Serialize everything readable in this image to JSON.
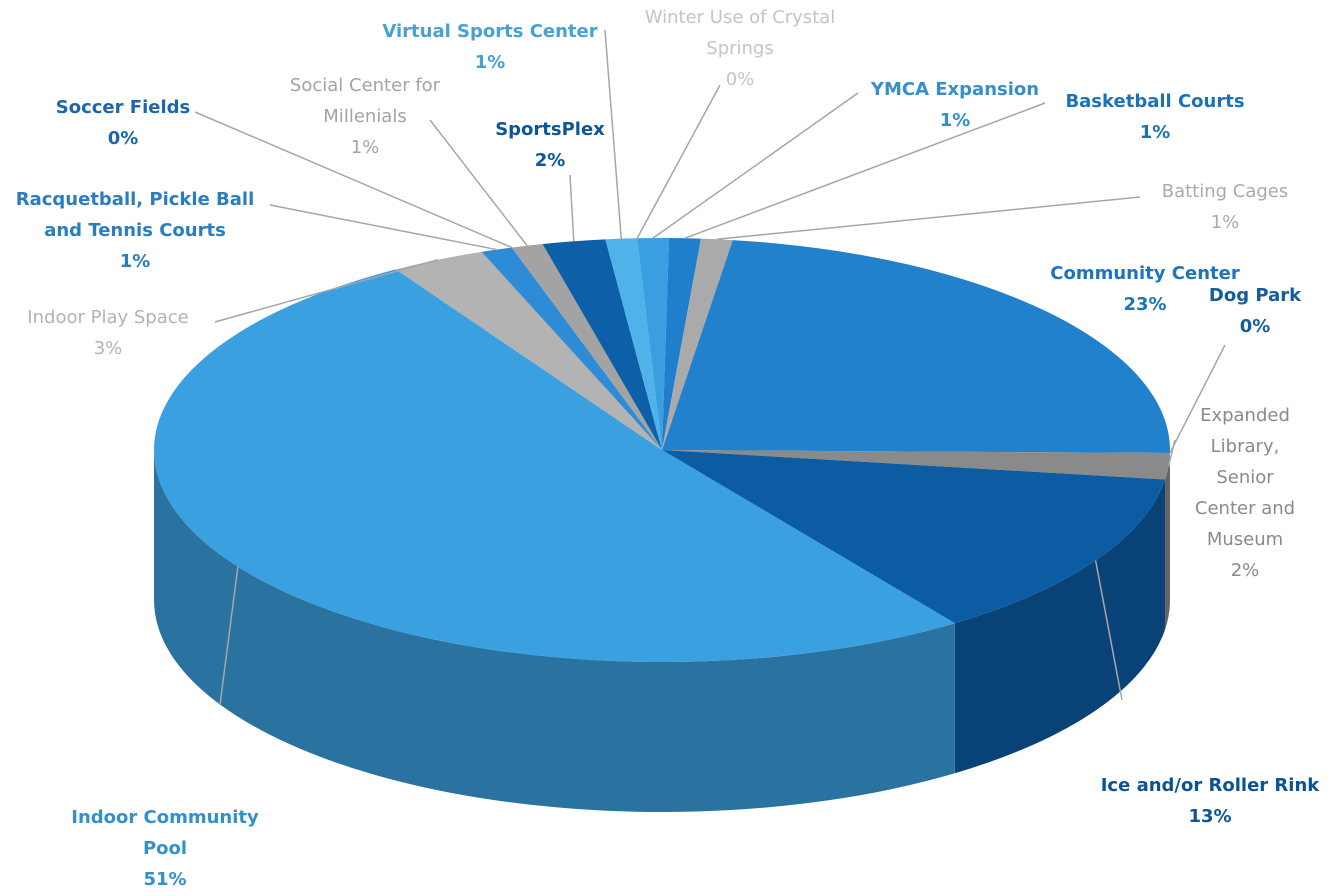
{
  "chart_data": {
    "type": "pie3d",
    "categories": [
      "Community Center",
      "Dog Park",
      "Expanded Library, Senior Center and Museum",
      "Ice and/or Roller Rink",
      "Indoor Community Pool",
      "Indoor Play Space",
      "Racquetball, Pickle Ball and Tennis Courts",
      "Soccer Fields",
      "Social Center for Millenials",
      "SportsPlex",
      "Virtual Sports Center",
      "Winter Use of Crystal Springs",
      "YMCA Expansion",
      "Basketball Courts",
      "Batting Cages"
    ],
    "values": [
      23,
      0,
      2,
      13,
      51,
      3,
      1,
      0,
      1,
      2,
      1,
      0,
      1,
      1,
      1
    ],
    "value_labels": [
      "23%",
      "0%",
      "2%",
      "13%",
      "51%",
      "3%",
      "1%",
      "0%",
      "1%",
      "2%",
      "1%",
      "0%",
      "1%",
      "1%",
      "1%"
    ],
    "colors": [
      "#2281cc",
      "#1767ad",
      "#8a8a8a",
      "#0c5ca4",
      "#3aa0e0",
      "#b3b3b3",
      "#2e8bd6",
      "#1f72bd",
      "#a3a3a3",
      "#0d5fa8",
      "#4fb3ea",
      "#c4c4c4",
      "#3a9fe0",
      "#1f7fcc",
      "#aaaaaa"
    ]
  }
}
